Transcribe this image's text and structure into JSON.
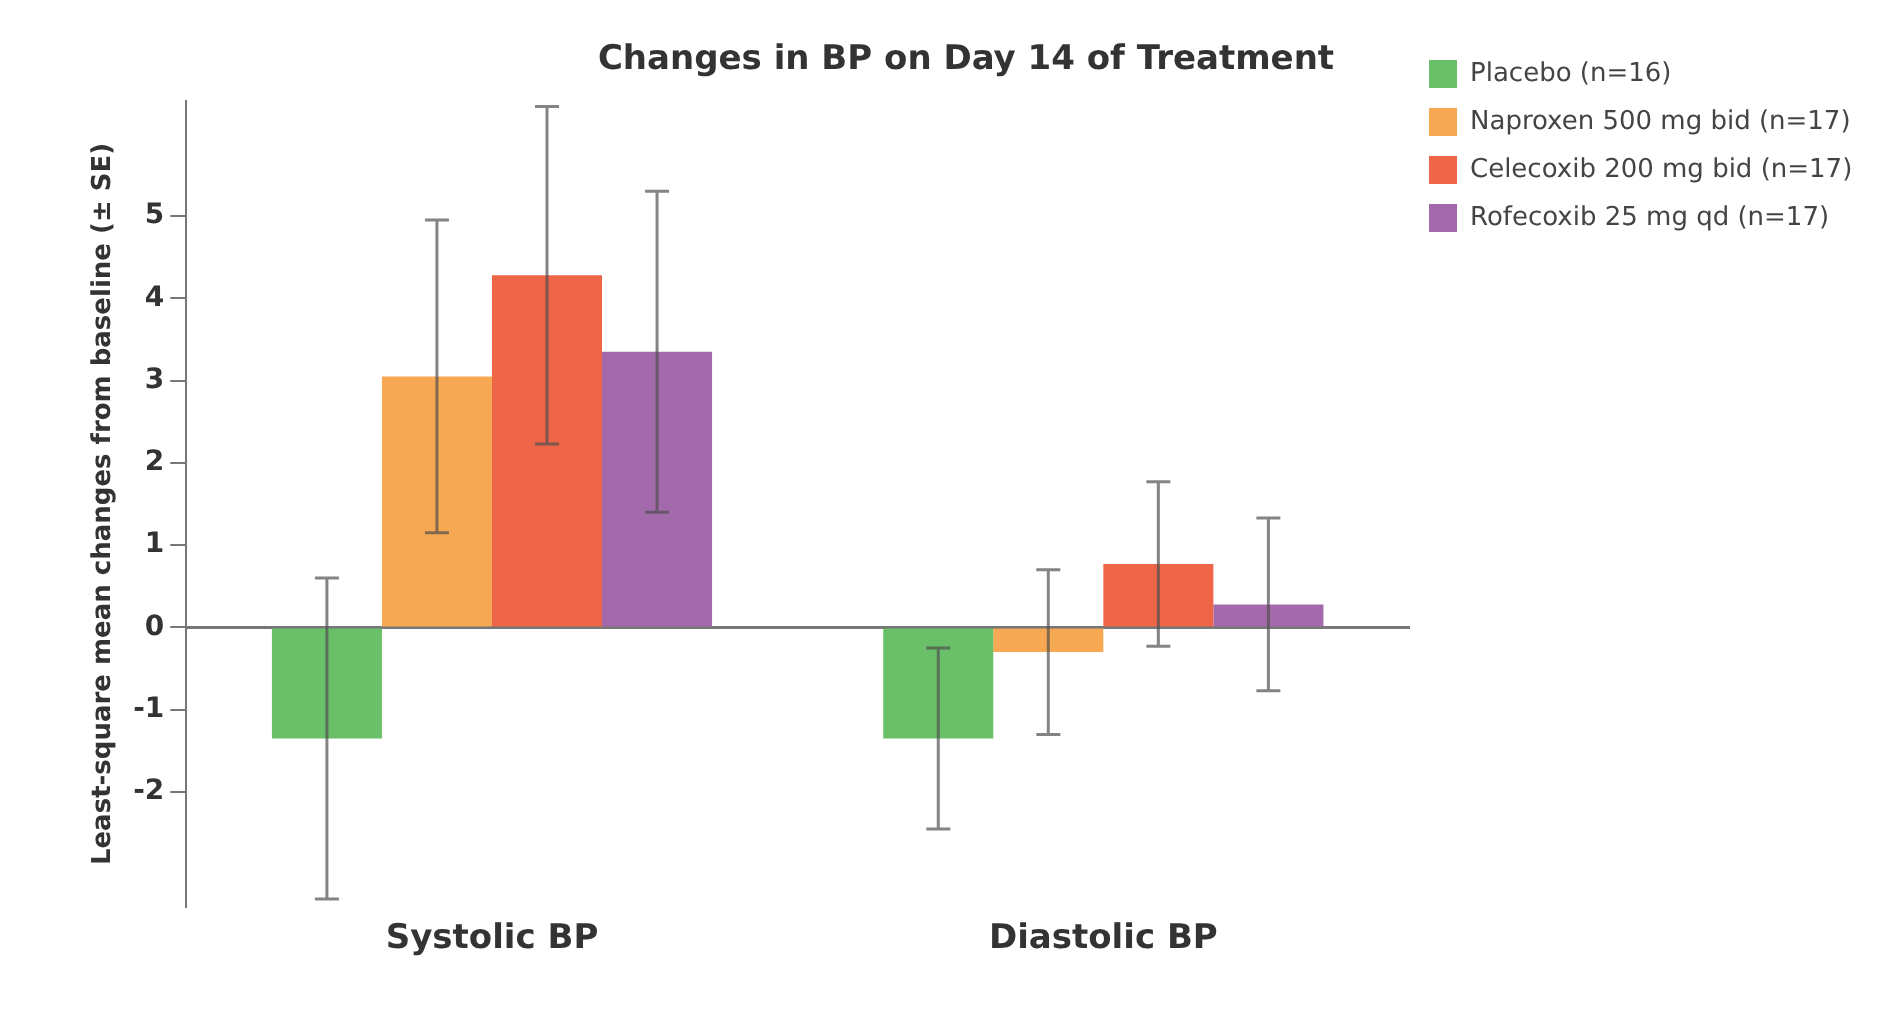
{
  "chart_data": {
    "type": "bar",
    "title": "Changes in BP on Day 14 of Treatment",
    "ylabel": "Least-square mean changes from baseline (± SE)",
    "categories": [
      "Systolic BP",
      "Diastolic BP"
    ],
    "series": [
      {
        "name": "Placebo (n=16)",
        "color": "#6abf69",
        "values": [
          -1.35,
          -1.35
        ],
        "errors": [
          1.95,
          1.1
        ]
      },
      {
        "name": "Naproxen 500 mg bid (n=17)",
        "color": "#f7a852",
        "values": [
          3.05,
          -0.3
        ],
        "errors": [
          1.9,
          1.0
        ]
      },
      {
        "name": "Celecoxib 200 mg bid (n=17)",
        "color": "#ef6548",
        "values": [
          4.28,
          0.77
        ],
        "errors": [
          2.05,
          1.0
        ]
      },
      {
        "name": "Rofecoxib 25 mg qd (n=17)",
        "color": "#a36aab",
        "values": [
          3.35,
          0.28
        ],
        "errors": [
          1.95,
          1.05
        ]
      }
    ],
    "ylim": [
      -3.4,
      6.4
    ],
    "yticks": [
      -2,
      -1,
      0,
      1,
      2,
      3,
      4,
      5
    ],
    "legend": "top right"
  }
}
